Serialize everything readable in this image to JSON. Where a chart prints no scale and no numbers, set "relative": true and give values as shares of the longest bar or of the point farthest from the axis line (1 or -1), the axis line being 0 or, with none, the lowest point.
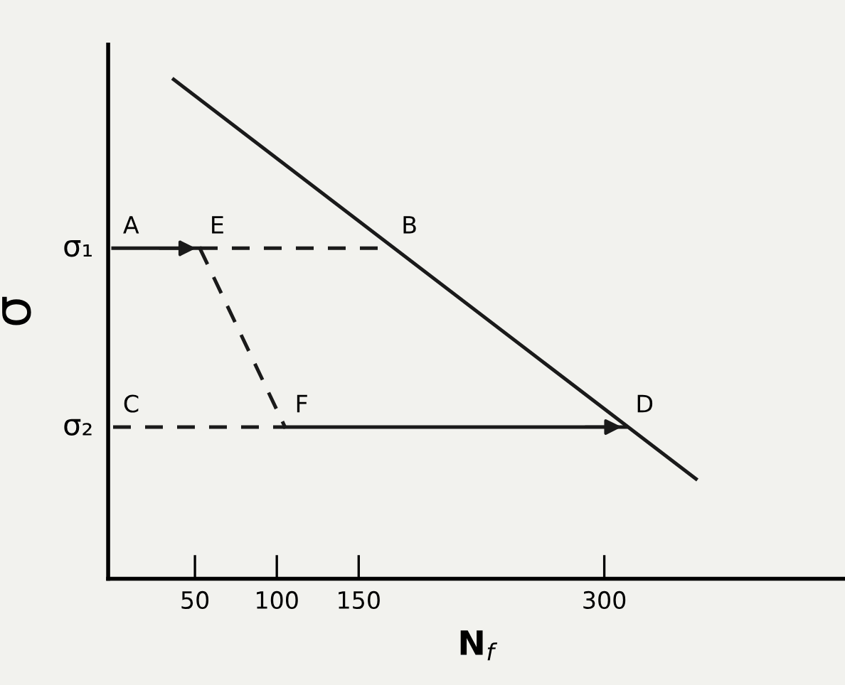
{
  "chart_data": {
    "type": "line",
    "relative": true,
    "xlabel": "N$_{f}$",
    "ylabel": "σ",
    "xlim": [
      -3,
      447
    ],
    "xticks": [
      50,
      100,
      150,
      300
    ],
    "grid": false,
    "legend": false,
    "marker": "none",
    "series": [
      {
        "color": "#1a1a1a",
        "x": [
          37,
          356
        ],
        "values": [
          1.0,
          0.2
        ],
        "line_style": "solid"
      },
      {
        "color": "#1a1a1a",
        "x": [
          0,
          53
        ],
        "values": [
          0.662,
          0.662
        ],
        "line_style": "solid"
      },
      {
        "color": "#1a1a1a",
        "x": [
          53,
          170
        ],
        "values": [
          0.662,
          0.662
        ],
        "line_style": "dashed"
      },
      {
        "color": "#1a1a1a",
        "x": [
          53,
          105
        ],
        "values": [
          0.662,
          0.304
        ],
        "line_style": "dashed"
      },
      {
        "color": "#1a1a1a",
        "x": [
          0,
          105
        ],
        "values": [
          0.304,
          0.304
        ],
        "line_style": "dashed"
      },
      {
        "color": "#1a1a1a",
        "x": [
          105,
          313
        ],
        "values": [
          0.304,
          0.304
        ],
        "line_style": "solid"
      }
    ],
    "annotations": [
      {
        "text": "σ₁",
        "x": 0,
        "y": 0.662
      },
      {
        "text": "σ₂",
        "x": 0,
        "y": 0.304
      },
      {
        "text": "A",
        "x": 0,
        "y": 0.662
      },
      {
        "text": "E",
        "x": 53,
        "y": 0.662
      },
      {
        "text": "B",
        "x": 170,
        "y": 0.662
      },
      {
        "text": "C",
        "x": 0,
        "y": 0.304
      },
      {
        "text": "F",
        "x": 105,
        "y": 0.304
      },
      {
        "text": "D",
        "x": 313,
        "y": 0.304
      }
    ]
  }
}
